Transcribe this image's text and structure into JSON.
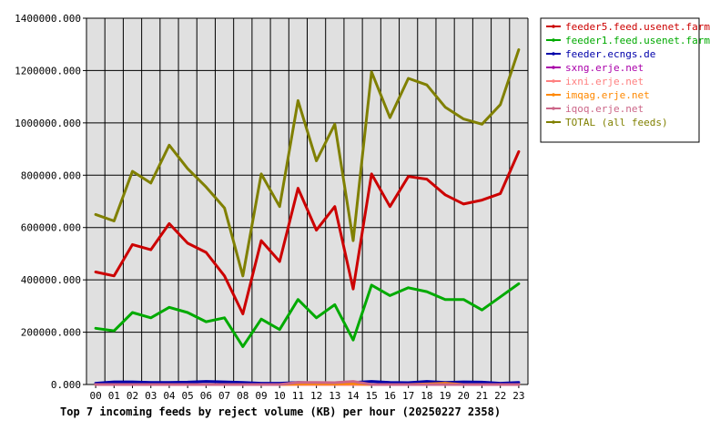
{
  "chart_data": {
    "type": "line",
    "title": "Top 7 incoming feeds by reject volume (KB) per hour (20250227 2358)",
    "xlabel": "",
    "ylabel": "",
    "categories": [
      "00",
      "01",
      "02",
      "03",
      "04",
      "05",
      "06",
      "07",
      "08",
      "09",
      "10",
      "11",
      "12",
      "13",
      "14",
      "15",
      "16",
      "17",
      "18",
      "19",
      "20",
      "21",
      "22",
      "23"
    ],
    "ylim": [
      0,
      1400000
    ],
    "yticks": [
      "0.000",
      "200000.000",
      "400000.000",
      "600000.000",
      "800000.000",
      "1000000.000",
      "1200000.000",
      "1400000.000"
    ],
    "grid": true,
    "legend_position": "top-right",
    "series": [
      {
        "name": "feeder5.feed.usenet.farm",
        "color": "#cc0000",
        "values": [
          430000,
          415000,
          535000,
          515000,
          615000,
          540000,
          505000,
          415000,
          270000,
          550000,
          470000,
          750000,
          590000,
          680000,
          365000,
          805000,
          680000,
          795000,
          785000,
          725000,
          690000,
          705000,
          730000,
          890000
        ]
      },
      {
        "name": "feeder1.feed.usenet.farm",
        "color": "#00aa00",
        "values": [
          215000,
          205000,
          275000,
          255000,
          295000,
          275000,
          240000,
          255000,
          145000,
          250000,
          210000,
          325000,
          255000,
          305000,
          170000,
          380000,
          340000,
          370000,
          355000,
          325000,
          325000,
          285000,
          335000,
          385000
        ]
      },
      {
        "name": "feeder.ecngs.de",
        "color": "#0000aa",
        "values": [
          5000,
          10000,
          10000,
          8000,
          8000,
          9000,
          12000,
          10000,
          8000,
          5000,
          5000,
          8000,
          6000,
          7000,
          8000,
          12000,
          8000,
          7000,
          12000,
          8000,
          10000,
          9000,
          5000,
          8000
        ]
      },
      {
        "name": "sxng.erje.net",
        "color": "#aa00aa",
        "values": [
          0,
          0,
          0,
          0,
          0,
          0,
          0,
          0,
          0,
          0,
          0,
          0,
          0,
          0,
          0,
          0,
          0,
          0,
          0,
          0,
          0,
          0,
          0,
          0
        ]
      },
      {
        "name": "ixni.erje.net",
        "color": "#ff8080",
        "values": [
          0,
          0,
          0,
          0,
          0,
          0,
          0,
          0,
          0,
          0,
          0,
          0,
          0,
          0,
          0,
          0,
          0,
          0,
          0,
          0,
          0,
          0,
          0,
          0
        ]
      },
      {
        "name": "imqag.erje.net",
        "color": "#ff8800",
        "values": [
          0,
          0,
          0,
          0,
          0,
          0,
          0,
          0,
          0,
          0,
          0,
          2000,
          3000,
          2000,
          4000,
          0,
          0,
          0,
          2000,
          5000,
          0,
          0,
          0,
          0
        ]
      },
      {
        "name": "iqoq.erje.net",
        "color": "#cc6688",
        "values": [
          0,
          0,
          0,
          0,
          0,
          0,
          0,
          0,
          0,
          0,
          0,
          8000,
          8000,
          7000,
          12000,
          0,
          0,
          0,
          0,
          0,
          0,
          0,
          0,
          0
        ]
      },
      {
        "name": "TOTAL (all feeds)",
        "color": "#808000",
        "values": [
          650000,
          625000,
          815000,
          770000,
          915000,
          825000,
          755000,
          675000,
          415000,
          805000,
          680000,
          1085000,
          855000,
          995000,
          550000,
          1195000,
          1020000,
          1170000,
          1145000,
          1060000,
          1015000,
          995000,
          1070000,
          1280000
        ]
      }
    ]
  }
}
